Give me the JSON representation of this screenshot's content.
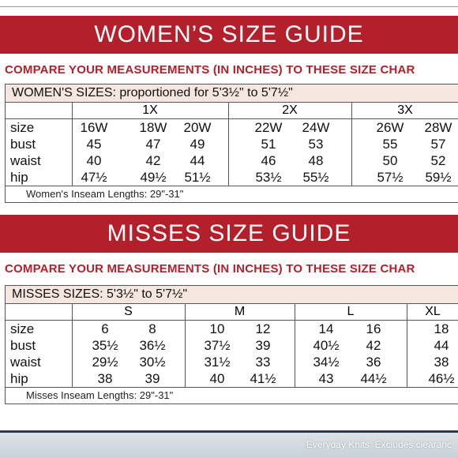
{
  "womens": {
    "banner_title": "WOMEN’S SIZE GUIDE",
    "compare_text": "COMPARE YOUR MEASUREMENTS (IN INCHES) TO THESE SIZE CHAR",
    "table_heading": "WOMEN'S SIZES: proportioned for 5'3½\" to 5'7½\"",
    "groups": [
      "1X",
      "2X",
      "3X"
    ],
    "rows": [
      {
        "label": "size",
        "values": [
          "16W",
          "18W",
          "20W",
          "22W",
          "24W",
          "26W",
          "28W"
        ]
      },
      {
        "label": "bust",
        "values": [
          "45",
          "47",
          "49",
          "51",
          "53",
          "55",
          "57"
        ]
      },
      {
        "label": "waist",
        "values": [
          "40",
          "42",
          "44",
          "46",
          "48",
          "50",
          "52"
        ]
      },
      {
        "label": "hip",
        "values": [
          "47½",
          "49½",
          "51½",
          "53½",
          "55½",
          "57½",
          "59½"
        ]
      }
    ],
    "inseam": "Women's Inseam Lengths: 29\"-31\""
  },
  "misses": {
    "banner_title": "MISSES SIZE GUIDE",
    "compare_text": "COMPARE YOUR MEASUREMENTS (IN INCHES) TO THESE SIZE CHAR",
    "table_heading": "MISSES SIZES: 5'3½\" to 5'7½\"",
    "groups": [
      "S",
      "M",
      "L",
      "XL"
    ],
    "rows": [
      {
        "label": "size",
        "values": [
          "6",
          "8",
          "10",
          "12",
          "14",
          "16",
          "18"
        ]
      },
      {
        "label": "bust",
        "values": [
          "35½",
          "36½",
          "37½",
          "39",
          "40½",
          "42",
          "44"
        ]
      },
      {
        "label": "waist",
        "values": [
          "29½",
          "30½",
          "31½",
          "33",
          "34½",
          "36",
          "38"
        ]
      },
      {
        "label": "hip",
        "values": [
          "38",
          "39",
          "40",
          "41½",
          "43",
          "44½",
          "46½"
        ]
      }
    ],
    "inseam": "Misses Inseam Lengths: 29\"-31\""
  },
  "footer": {
    "note": "Everyday Knits. Excludes clearanc"
  },
  "colors": {
    "banner_red": "#b3202b",
    "heading_fill": "#f5e6df"
  }
}
